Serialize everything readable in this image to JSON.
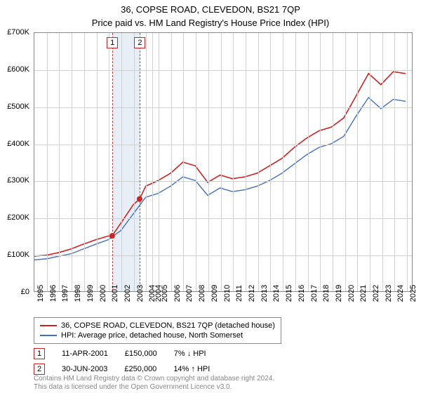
{
  "titles": {
    "line1": "36, COPSE ROAD, CLEVEDON, BS21 7QP",
    "line2": "Price paid vs. HM Land Registry's House Price Index (HPI)"
  },
  "chart": {
    "type": "line",
    "background_color": "#ffffff",
    "grid_color": "#d0d0d0",
    "border_color": "#888888",
    "ylim": [
      0,
      700000
    ],
    "ytick_step": 100000,
    "ytick_format_prefix": "£",
    "ytick_format_suffix": "K",
    "yticks": [
      "£0",
      "£100K",
      "£200K",
      "£300K",
      "£400K",
      "£500K",
      "£600K",
      "£700K"
    ],
    "xlim": [
      1995,
      2025.5
    ],
    "xticks": [
      1995,
      1996,
      1997,
      1998,
      1999,
      2000,
      2001,
      2002,
      2003,
      2004,
      2004,
      2005,
      2006,
      2007,
      2008,
      2009,
      2010,
      2011,
      2012,
      2013,
      2014,
      2015,
      2016,
      2017,
      2018,
      2019,
      2020,
      2021,
      2022,
      2023,
      2024,
      2025
    ],
    "xtick_fontsize": 11,
    "ytick_fontsize": 11,
    "series": [
      {
        "name": "36, COPSE ROAD, CLEVEDON, BS21 7QP (detached house)",
        "color": "#d02020",
        "line_width": 1.6,
        "x": [
          1995,
          1996,
          1997,
          1998,
          1999,
          2000,
          2001,
          2001.28,
          2002,
          2003,
          2003.5,
          2004,
          2005,
          2006,
          2007,
          2008,
          2009,
          2010,
          2011,
          2012,
          2013,
          2014,
          2015,
          2016,
          2017,
          2018,
          2019,
          2020,
          2021,
          2022,
          2023,
          2024,
          2025
        ],
        "y": [
          95000,
          98000,
          105000,
          115000,
          128000,
          140000,
          150000,
          150000,
          185000,
          235000,
          250000,
          285000,
          300000,
          320000,
          350000,
          340000,
          295000,
          315000,
          305000,
          310000,
          320000,
          340000,
          360000,
          390000,
          415000,
          435000,
          445000,
          470000,
          530000,
          590000,
          560000,
          595000,
          590000
        ]
      },
      {
        "name": "HPI: Average price, detached house, North Somerset",
        "color": "#4070c0",
        "line_width": 1.4,
        "x": [
          1995,
          1996,
          1997,
          1998,
          1999,
          2000,
          2001,
          2002,
          2003,
          2004,
          2005,
          2006,
          2007,
          2008,
          2009,
          2010,
          2011,
          2012,
          2013,
          2014,
          2015,
          2016,
          2017,
          2018,
          2019,
          2020,
          2021,
          2022,
          2023,
          2024,
          2025
        ],
        "y": [
          85000,
          88000,
          95000,
          102000,
          115000,
          128000,
          140000,
          165000,
          210000,
          255000,
          265000,
          285000,
          310000,
          300000,
          260000,
          280000,
          270000,
          275000,
          285000,
          300000,
          320000,
          345000,
          370000,
          390000,
          400000,
          420000,
          475000,
          525000,
          495000,
          520000,
          515000
        ]
      }
    ],
    "sale_markers": [
      {
        "n": "1",
        "x": 2001.28,
        "y": 150000
      },
      {
        "n": "2",
        "x": 2003.5,
        "y": 250000
      }
    ],
    "marker_band": {
      "from": 2001.28,
      "to": 2003.5,
      "color": "#e8eef5"
    },
    "marker_line_color": "#c84040",
    "marker_box_border": "#d02020"
  },
  "legend": {
    "items": [
      {
        "color": "#d02020",
        "label": "36, COPSE ROAD, CLEVEDON, BS21 7QP (detached house)"
      },
      {
        "color": "#4070c0",
        "label": "HPI: Average price, detached house, North Somerset"
      }
    ]
  },
  "sales": [
    {
      "n": "1",
      "date": "11-APR-2001",
      "price": "£150,000",
      "delta": "7% ↓ HPI"
    },
    {
      "n": "2",
      "date": "30-JUN-2003",
      "price": "£250,000",
      "delta": "14% ↑ HPI"
    }
  ],
  "footer": {
    "line1": "Contains HM Land Registry data © Crown copyright and database right 2024.",
    "line2": "This data is licensed under the Open Government Licence v3.0."
  }
}
